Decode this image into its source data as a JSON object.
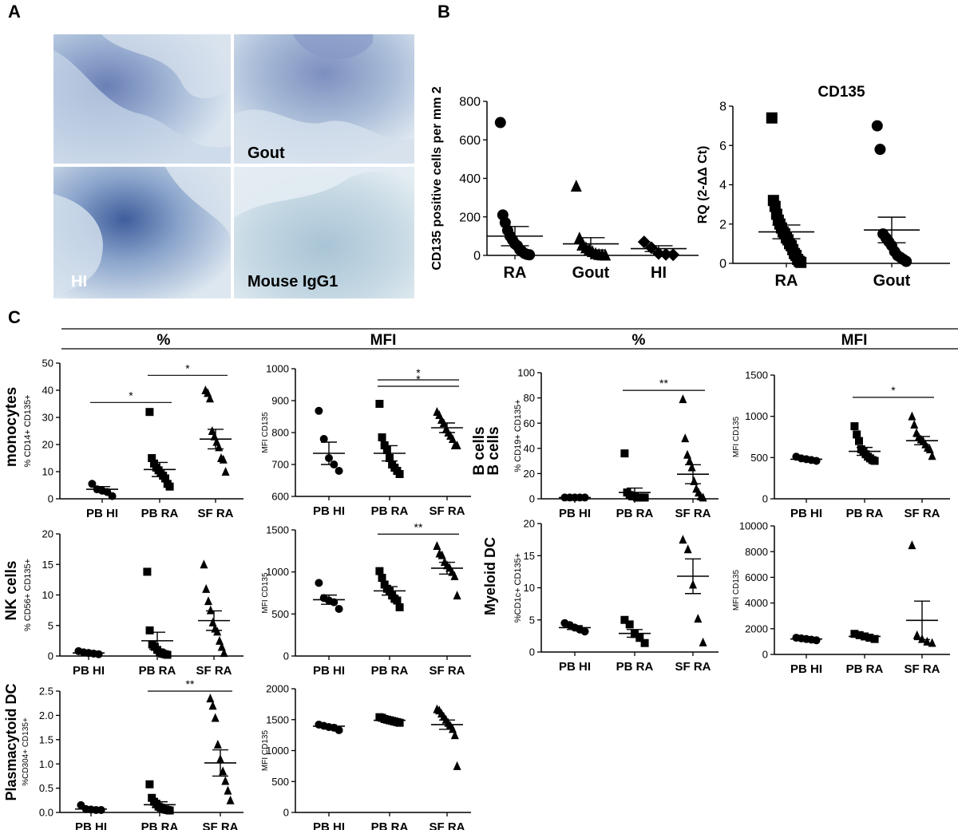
{
  "panel_labels": {
    "a": "A",
    "b": "B",
    "c": "C"
  },
  "micrographs": {
    "gout": "Gout",
    "hi": "HI",
    "isotype": "Mouse IgG1"
  },
  "headers": [
    "%",
    "MFI",
    "%",
    "MFI"
  ],
  "row_titles": {
    "monocytes": "monocytes",
    "bcells": "B cells",
    "nk": "NK cells",
    "myeloid": "Myeloid DC",
    "pdc": "Plasmacytoid DC"
  },
  "chart_data": [
    {
      "id": "B1",
      "type": "scatter",
      "title": "",
      "ylabel": "CD135 positive cells per mm 2",
      "ylim": [
        0,
        800
      ],
      "yticks": [
        0,
        200,
        400,
        600,
        800
      ],
      "categories": [
        "RA",
        "Gout",
        "HI"
      ],
      "markers": [
        "circle",
        "triangle",
        "diamond"
      ],
      "points": [
        [
          690,
          210,
          170,
          130,
          100,
          80,
          60,
          50,
          30,
          20,
          10,
          5,
          3
        ],
        [
          360,
          90,
          60,
          40,
          30,
          20,
          10,
          5,
          3,
          2
        ],
        [
          70,
          40,
          10,
          5,
          3
        ]
      ],
      "mean": [
        100,
        60,
        35
      ],
      "sem": [
        50,
        32,
        15
      ],
      "sig": []
    },
    {
      "id": "B2",
      "type": "scatter",
      "title": "CD135",
      "ylabel": "RQ (2-ΔΔ Ct)",
      "ylim": [
        0,
        8
      ],
      "yticks": [
        0,
        2,
        4,
        6,
        8
      ],
      "categories": [
        "RA",
        "Gout"
      ],
      "markers": [
        "square",
        "circle"
      ],
      "points": [
        [
          7.4,
          3.2,
          2.9,
          2.5,
          2.2,
          2.0,
          1.8,
          1.6,
          1.5,
          1.3,
          1.2,
          1.0,
          0.9,
          0.7,
          0.5,
          0.4,
          0.2,
          0.1,
          0.05
        ],
        [
          7.0,
          5.8,
          1.5,
          1.3,
          1.1,
          0.9,
          0.6,
          0.4,
          0.3,
          0.2,
          0.1
        ]
      ],
      "mean": [
        1.6,
        1.7
      ],
      "sem": [
        0.35,
        0.65
      ],
      "sig": []
    },
    {
      "id": "mono_pct",
      "type": "scatter",
      "title": "",
      "ylabel": "% CD14+ CD135+",
      "ylim": [
        0,
        50
      ],
      "yticks": [
        0,
        10,
        20,
        30,
        40,
        50
      ],
      "categories": [
        "PB HI",
        "PB RA",
        "SF RA"
      ],
      "markers": [
        "circle",
        "square",
        "triangle"
      ],
      "points": [
        [
          5.5,
          3.5,
          3.0,
          2.5,
          1.0
        ],
        [
          32.0,
          15.0,
          13.0,
          11.5,
          10.5,
          9.5,
          8.5,
          7.5,
          5.5,
          4.5
        ],
        [
          40.0,
          39.0,
          37.0,
          25.0,
          23.0,
          21.0,
          19.0,
          15.0,
          14.5,
          10.0
        ]
      ],
      "mean": [
        3.5,
        10.8,
        22.0
      ],
      "sem": [
        1.0,
        2.6,
        3.6
      ],
      "sig": [
        {
          "from": 0,
          "to": 1,
          "y": 35.5,
          "label": "*"
        },
        {
          "from": 1,
          "to": 2,
          "y": 45.5,
          "label": "*"
        }
      ]
    },
    {
      "id": "mono_mfi",
      "type": "scatter",
      "title": "",
      "ylabel": "MFI CD135",
      "ylim": [
        600,
        1000
      ],
      "yticks": [
        600,
        700,
        800,
        900,
        1000
      ],
      "categories": [
        "PB HI",
        "PB RA",
        "SF RA"
      ],
      "markers": [
        "circle",
        "square",
        "triangle"
      ],
      "points": [
        [
          868,
          780,
          720,
          700,
          680
        ],
        [
          890,
          785,
          760,
          745,
          720,
          700,
          690,
          680,
          670
        ],
        [
          865,
          855,
          840,
          830,
          810,
          800,
          790,
          780,
          760,
          760
        ]
      ],
      "mean": [
        735,
        735,
        815
      ],
      "sem": [
        35,
        24,
        15
      ],
      "sig": [
        {
          "from": 1,
          "to": 2,
          "y": 965,
          "label": "*"
        },
        {
          "from": 1,
          "to": 2,
          "y": 945,
          "label": "*"
        }
      ]
    },
    {
      "id": "b_pct",
      "type": "scatter",
      "title": "",
      "ylabel": "% CD19+ CD135+",
      "ylim": [
        0,
        100
      ],
      "yticks": [
        0,
        20,
        40,
        60,
        80,
        100
      ],
      "categories": [
        "PB HI",
        "PB RA",
        "SF RA"
      ],
      "markers": [
        "circle",
        "square",
        "triangle"
      ],
      "points": [
        [
          1,
          1,
          1,
          1,
          1
        ],
        [
          36,
          5,
          3,
          2,
          2,
          1,
          1,
          1,
          1
        ],
        [
          79,
          48,
          35,
          30,
          25,
          14,
          8,
          5,
          2,
          1
        ]
      ],
      "mean": [
        1,
        5,
        19.5
      ],
      "sem": [
        0.2,
        3.5,
        7.5
      ],
      "sig": [
        {
          "from": 1,
          "to": 2,
          "y": 86,
          "label": "**"
        }
      ]
    },
    {
      "id": "b_mfi",
      "type": "scatter",
      "title": "",
      "ylabel": "MFI CD135",
      "ylim": [
        0,
        1500
      ],
      "yticks": [
        0,
        500,
        1000,
        1500
      ],
      "categories": [
        "PB HI",
        "PB RA",
        "SF RA"
      ],
      "markers": [
        "circle",
        "square",
        "triangle"
      ],
      "points": [
        [
          510,
          490,
          480,
          470,
          460
        ],
        [
          880,
          780,
          700,
          600,
          570,
          540,
          510,
          490,
          470,
          460
        ],
        [
          1000,
          900,
          800,
          750,
          720,
          700,
          660,
          620,
          600,
          520
        ]
      ],
      "mean": [
        480,
        575,
        705
      ],
      "sem": [
        12,
        48,
        50
      ],
      "sig": [
        {
          "from": 1,
          "to": 2,
          "y": 1230,
          "label": "*"
        }
      ]
    },
    {
      "id": "nk_pct",
      "type": "scatter",
      "title": "",
      "ylabel": "% CD56+ CD135+",
      "ylim": [
        0,
        20
      ],
      "yticks": [
        0,
        5,
        10,
        15,
        20
      ],
      "categories": [
        "PB HI",
        "PB RA",
        "SF RA"
      ],
      "markers": [
        "circle",
        "square",
        "triangle"
      ],
      "points": [
        [
          0.8,
          0.6,
          0.5,
          0.4,
          0.3
        ],
        [
          13.8,
          4.2,
          1.9,
          1.5,
          1.0,
          0.6,
          0.4,
          0.3,
          0.2
        ],
        [
          15.0,
          11.0,
          9.0,
          7.5,
          5.5,
          4.5,
          4.0,
          2.5,
          1.5,
          0.5
        ]
      ],
      "mean": [
        0.5,
        2.5,
        5.8
      ],
      "sem": [
        0.1,
        1.4,
        1.6
      ],
      "sig": []
    },
    {
      "id": "nk_mfi",
      "type": "scatter",
      "title": "",
      "ylabel": "MFI CD135",
      "ylim": [
        0,
        1500
      ],
      "yticks": [
        0,
        500,
        1000,
        1500
      ],
      "categories": [
        "PB HI",
        "PB RA",
        "SF RA"
      ],
      "markers": [
        "circle",
        "square",
        "triangle"
      ],
      "points": [
        [
          870,
          690,
          660,
          640,
          560
        ],
        [
          1010,
          930,
          850,
          800,
          770,
          720,
          680,
          660,
          580
        ],
        [
          1310,
          1220,
          1200,
          1120,
          1080,
          1050,
          1000,
          950,
          720
        ]
      ],
      "mean": [
        670,
        775,
        1045
      ],
      "sem": [
        55,
        50,
        70
      ],
      "sig": [
        {
          "from": 1,
          "to": 2,
          "y": 1450,
          "label": "**"
        }
      ]
    },
    {
      "id": "mdc_pct",
      "type": "scatter",
      "title": "",
      "ylabel": "%CD1c+ CD135+",
      "ylim": [
        0,
        20
      ],
      "yticks": [
        0,
        5,
        10,
        15,
        20
      ],
      "categories": [
        "PB HI",
        "PB RA",
        "SF RA"
      ],
      "markers": [
        "circle",
        "square",
        "triangle"
      ],
      "points": [
        [
          4.5,
          4.2,
          3.8,
          3.5,
          3.2
        ],
        [
          5.0,
          4.3,
          2.8,
          2.2,
          1.4
        ],
        [
          17.5,
          16.0,
          10.5,
          5.2,
          1.5
        ]
      ],
      "mean": [
        3.8,
        2.9,
        11.8
      ],
      "sem": [
        0.3,
        0.6,
        2.7
      ],
      "sig": []
    },
    {
      "id": "mdc_mfi",
      "type": "scatter",
      "title": "",
      "ylabel": "MFI CD135",
      "ylim": [
        0,
        10000
      ],
      "yticks": [
        0,
        2000,
        4000,
        6000,
        8000,
        10000
      ],
      "categories": [
        "PB HI",
        "PB RA",
        "SF RA"
      ],
      "markers": [
        "circle",
        "square",
        "triangle"
      ],
      "points": [
        [
          1300,
          1250,
          1200,
          1150,
          1100
        ],
        [
          1600,
          1500,
          1400,
          1300,
          1200
        ],
        [
          8500,
          1500,
          1200,
          1000,
          900
        ]
      ],
      "mean": [
        1200,
        1400,
        2650
      ],
      "sem": [
        60,
        80,
        1500
      ],
      "sig": []
    },
    {
      "id": "pdc_pct",
      "type": "scatter",
      "title": "",
      "ylabel": "%CD304+ CD135+",
      "ylim": [
        0,
        2.5
      ],
      "yticks": [
        0.0,
        0.5,
        1.0,
        1.5,
        2.0,
        2.5
      ],
      "categories": [
        "PB HI",
        "PB RA",
        "SF RA"
      ],
      "markers": [
        "circle",
        "square",
        "triangle"
      ],
      "points": [
        [
          0.15,
          0.07,
          0.06,
          0.05,
          0.05
        ],
        [
          0.58,
          0.3,
          0.22,
          0.18,
          0.12,
          0.1,
          0.08,
          0.06,
          0.05,
          0.04
        ],
        [
          2.35,
          2.2,
          1.95,
          1.4,
          1.1,
          0.85,
          0.65,
          0.45,
          0.25
        ]
      ],
      "mean": [
        0.07,
        0.16,
        1.02
      ],
      "sem": [
        0.02,
        0.06,
        0.27
      ],
      "sig": [
        {
          "from": 1,
          "to": 2,
          "y": 2.5,
          "label": "**"
        }
      ]
    },
    {
      "id": "pdc_mfi",
      "type": "scatter",
      "title": "",
      "ylabel": "MFI CD135",
      "ylim": [
        0,
        2000
      ],
      "yticks": [
        0,
        500,
        1000,
        1500,
        2000
      ],
      "categories": [
        "PB HI",
        "PB RA",
        "SF RA"
      ],
      "markers": [
        "circle",
        "square",
        "triangle"
      ],
      "points": [
        [
          1420,
          1400,
          1380,
          1370,
          1330
        ],
        [
          1540,
          1530,
          1510,
          1500,
          1490,
          1480,
          1470,
          1460,
          1450
        ],
        [
          1670,
          1650,
          1600,
          1550,
          1500,
          1450,
          1400,
          1350,
          1250,
          750
        ]
      ],
      "mean": [
        1395,
        1490,
        1420
      ],
      "sem": [
        20,
        12,
        75
      ],
      "sig": []
    }
  ]
}
